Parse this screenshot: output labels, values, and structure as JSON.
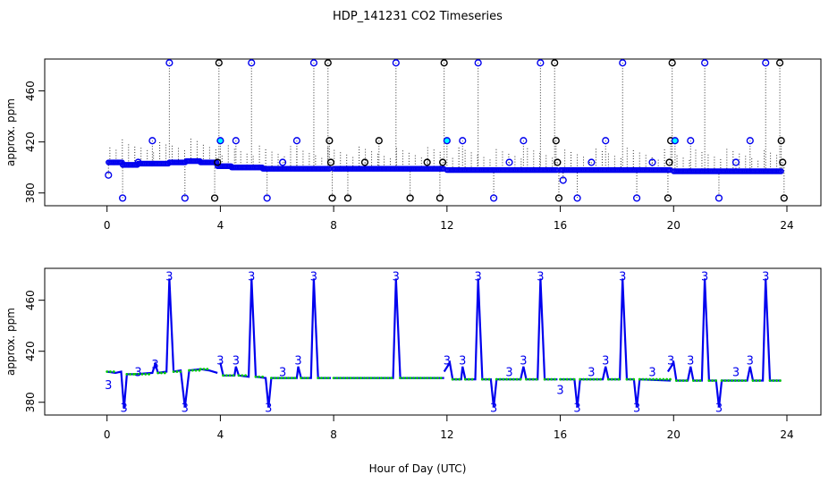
{
  "chart_data": [
    {
      "type": "scatter",
      "title": "HDP_141231  CO2 Timeseries",
      "ylabel": "approx. ppm",
      "xlim": [
        -2.2,
        25.2
      ],
      "ylim": [
        370,
        485
      ],
      "xticks": [
        0,
        4,
        8,
        12,
        16,
        20,
        24
      ],
      "yticks": [
        380,
        420,
        460
      ],
      "colors": {
        "main": "#0000ee",
        "fill": "#00ffff",
        "outlier_black": "#000000",
        "dots": "#333333"
      },
      "main_series": [
        {
          "start": 0.05,
          "end": 0.55,
          "value": 404
        },
        {
          "start": 0.55,
          "end": 1.1,
          "value": 402
        },
        {
          "start": 1.1,
          "end": 1.6,
          "value": 403
        },
        {
          "start": 1.6,
          "end": 2.2,
          "value": 403
        },
        {
          "start": 2.2,
          "end": 2.8,
          "value": 404
        },
        {
          "start": 2.8,
          "end": 3.3,
          "value": 405
        },
        {
          "start": 3.3,
          "end": 3.9,
          "value": 404
        },
        {
          "start": 3.9,
          "end": 4.4,
          "value": 401
        },
        {
          "start": 4.4,
          "end": 5.5,
          "value": 400
        },
        {
          "start": 5.5,
          "end": 7.9,
          "value": 399
        },
        {
          "start": 8.0,
          "end": 11.9,
          "value": 399
        },
        {
          "start": 12.0,
          "end": 15.9,
          "value": 398
        },
        {
          "start": 16.0,
          "end": 19.9,
          "value": 398
        },
        {
          "start": 20.0,
          "end": 23.8,
          "value": 397
        }
      ],
      "outliers": [
        {
          "x": 0.05,
          "y": 394,
          "color": "blue"
        },
        {
          "x": 0.55,
          "y": 376,
          "color": "blue"
        },
        {
          "x": 1.1,
          "y": 404,
          "color": "blue"
        },
        {
          "x": 1.6,
          "y": 421,
          "color": "blue"
        },
        {
          "x": 2.2,
          "y": 482,
          "color": "blue"
        },
        {
          "x": 2.75,
          "y": 376,
          "color": "blue"
        },
        {
          "x": 3.8,
          "y": 376,
          "color": "black"
        },
        {
          "x": 3.9,
          "y": 404,
          "color": "black"
        },
        {
          "x": 3.95,
          "y": 482,
          "color": "black"
        },
        {
          "x": 4.0,
          "y": 421,
          "color": "cyan"
        },
        {
          "x": 4.55,
          "y": 421,
          "color": "blue"
        },
        {
          "x": 5.1,
          "y": 482,
          "color": "blue"
        },
        {
          "x": 5.65,
          "y": 376,
          "color": "blue"
        },
        {
          "x": 6.2,
          "y": 404,
          "color": "blue"
        },
        {
          "x": 6.7,
          "y": 421,
          "color": "blue"
        },
        {
          "x": 7.3,
          "y": 482,
          "color": "blue"
        },
        {
          "x": 7.8,
          "y": 482,
          "color": "black"
        },
        {
          "x": 7.85,
          "y": 421,
          "color": "black"
        },
        {
          "x": 7.9,
          "y": 404,
          "color": "black"
        },
        {
          "x": 7.95,
          "y": 376,
          "color": "black"
        },
        {
          "x": 8.5,
          "y": 376,
          "color": "black"
        },
        {
          "x": 9.1,
          "y": 404,
          "color": "black"
        },
        {
          "x": 9.6,
          "y": 421,
          "color": "black"
        },
        {
          "x": 10.2,
          "y": 482,
          "color": "blue"
        },
        {
          "x": 10.7,
          "y": 376,
          "color": "black"
        },
        {
          "x": 11.3,
          "y": 404,
          "color": "black"
        },
        {
          "x": 11.75,
          "y": 376,
          "color": "black"
        },
        {
          "x": 11.85,
          "y": 404,
          "color": "black"
        },
        {
          "x": 11.9,
          "y": 482,
          "color": "black"
        },
        {
          "x": 12.0,
          "y": 421,
          "color": "cyan"
        },
        {
          "x": 12.55,
          "y": 421,
          "color": "blue"
        },
        {
          "x": 13.1,
          "y": 482,
          "color": "blue"
        },
        {
          "x": 13.65,
          "y": 376,
          "color": "blue"
        },
        {
          "x": 14.2,
          "y": 404,
          "color": "blue"
        },
        {
          "x": 14.7,
          "y": 421,
          "color": "blue"
        },
        {
          "x": 15.3,
          "y": 482,
          "color": "blue"
        },
        {
          "x": 15.8,
          "y": 482,
          "color": "black"
        },
        {
          "x": 15.85,
          "y": 421,
          "color": "black"
        },
        {
          "x": 15.9,
          "y": 404,
          "color": "black"
        },
        {
          "x": 15.95,
          "y": 376,
          "color": "black"
        },
        {
          "x": 16.1,
          "y": 390,
          "color": "blue"
        },
        {
          "x": 16.6,
          "y": 376,
          "color": "blue"
        },
        {
          "x": 17.1,
          "y": 404,
          "color": "blue"
        },
        {
          "x": 17.6,
          "y": 421,
          "color": "blue"
        },
        {
          "x": 18.2,
          "y": 482,
          "color": "blue"
        },
        {
          "x": 18.7,
          "y": 376,
          "color": "blue"
        },
        {
          "x": 19.25,
          "y": 404,
          "color": "blue"
        },
        {
          "x": 19.8,
          "y": 376,
          "color": "black"
        },
        {
          "x": 19.85,
          "y": 404,
          "color": "black"
        },
        {
          "x": 19.9,
          "y": 421,
          "color": "black"
        },
        {
          "x": 19.95,
          "y": 482,
          "color": "black"
        },
        {
          "x": 20.05,
          "y": 421,
          "color": "cyan"
        },
        {
          "x": 20.6,
          "y": 421,
          "color": "blue"
        },
        {
          "x": 21.1,
          "y": 482,
          "color": "blue"
        },
        {
          "x": 21.6,
          "y": 376,
          "color": "blue"
        },
        {
          "x": 22.2,
          "y": 404,
          "color": "blue"
        },
        {
          "x": 22.7,
          "y": 421,
          "color": "blue"
        },
        {
          "x": 23.25,
          "y": 482,
          "color": "blue"
        },
        {
          "x": 23.75,
          "y": 482,
          "color": "black"
        },
        {
          "x": 23.8,
          "y": 421,
          "color": "black"
        },
        {
          "x": 23.85,
          "y": 404,
          "color": "black"
        },
        {
          "x": 23.9,
          "y": 376,
          "color": "black"
        }
      ]
    },
    {
      "type": "line",
      "ylabel": "approx. ppm",
      "xlabel": "Hour of Day (UTC)",
      "xlim": [
        -2.2,
        25.2
      ],
      "ylim": [
        370,
        485
      ],
      "xticks": [
        0,
        4,
        8,
        12,
        16,
        20,
        24
      ],
      "yticks": [
        380,
        420,
        460
      ],
      "marker_label": "3",
      "colors": {
        "line": "#0000ee",
        "points": "#00cc00"
      },
      "segments": [
        {
          "points": [
            [
              0.0,
              404
            ],
            [
              0.3,
              403
            ],
            [
              0.5,
              404
            ],
            [
              0.6,
              375
            ],
            [
              0.7,
              402
            ],
            [
              1.0,
              402
            ],
            [
              1.6,
              403
            ],
            [
              1.7,
              410
            ],
            [
              1.8,
              403
            ],
            [
              2.1,
              404
            ],
            [
              2.2,
              477
            ],
            [
              2.35,
              404
            ],
            [
              2.6,
              405
            ],
            [
              2.75,
              376
            ],
            [
              2.9,
              405
            ],
            [
              3.3,
              406
            ],
            [
              3.6,
              405
            ],
            [
              3.9,
              403
            ]
          ]
        },
        {
          "points": [
            [
              4.0,
              411
            ],
            [
              4.1,
              401
            ],
            [
              4.5,
              401
            ],
            [
              4.55,
              408
            ],
            [
              4.65,
              401
            ],
            [
              5.0,
              400
            ],
            [
              5.1,
              477
            ],
            [
              5.25,
              400
            ],
            [
              5.6,
              399
            ],
            [
              5.7,
              376
            ],
            [
              5.8,
              399
            ],
            [
              6.7,
              399
            ],
            [
              6.75,
              408
            ],
            [
              6.85,
              399
            ],
            [
              7.2,
              399
            ],
            [
              7.3,
              477
            ],
            [
              7.45,
              399
            ],
            [
              7.9,
              399
            ]
          ]
        },
        {
          "points": [
            [
              8.0,
              399
            ],
            [
              10.1,
              399
            ],
            [
              10.2,
              477
            ],
            [
              10.35,
              399
            ],
            [
              11.9,
              399
            ]
          ]
        },
        {
          "points": [
            [
              11.9,
              404
            ],
            [
              12.1,
              411
            ],
            [
              12.2,
              398
            ],
            [
              12.5,
              398
            ],
            [
              12.55,
              408
            ],
            [
              12.65,
              398
            ],
            [
              13.0,
              398
            ],
            [
              13.1,
              477
            ],
            [
              13.25,
              398
            ],
            [
              13.55,
              398
            ],
            [
              13.65,
              376
            ],
            [
              13.75,
              398
            ],
            [
              14.6,
              398
            ],
            [
              14.7,
              408
            ],
            [
              14.8,
              398
            ],
            [
              15.2,
              398
            ],
            [
              15.3,
              477
            ],
            [
              15.45,
              398
            ],
            [
              15.9,
              398
            ]
          ]
        },
        {
          "points": [
            [
              16.0,
              398
            ],
            [
              16.5,
              398
            ],
            [
              16.6,
              376
            ],
            [
              16.7,
              398
            ],
            [
              17.5,
              398
            ],
            [
              17.6,
              408
            ],
            [
              17.7,
              398
            ],
            [
              18.1,
              398
            ],
            [
              18.2,
              477
            ],
            [
              18.35,
              398
            ],
            [
              18.6,
              398
            ],
            [
              18.7,
              376
            ],
            [
              18.8,
              398
            ],
            [
              19.9,
              397
            ]
          ]
        },
        {
          "points": [
            [
              19.8,
              404
            ],
            [
              20.0,
              411
            ],
            [
              20.1,
              397
            ],
            [
              20.5,
              397
            ],
            [
              20.6,
              408
            ],
            [
              20.7,
              397
            ],
            [
              21.0,
              397
            ],
            [
              21.1,
              477
            ],
            [
              21.25,
              397
            ],
            [
              21.5,
              397
            ],
            [
              21.6,
              376
            ],
            [
              21.7,
              397
            ],
            [
              22.6,
              397
            ],
            [
              22.7,
              408
            ],
            [
              22.8,
              397
            ],
            [
              23.15,
              397
            ],
            [
              23.25,
              477
            ],
            [
              23.4,
              397
            ],
            [
              23.8,
              397
            ]
          ]
        }
      ],
      "labels": [
        {
          "x": 0.05,
          "y": 394
        },
        {
          "x": 0.6,
          "y": 376
        },
        {
          "x": 1.1,
          "y": 404
        },
        {
          "x": 1.7,
          "y": 410
        },
        {
          "x": 2.2,
          "y": 479
        },
        {
          "x": 2.75,
          "y": 376
        },
        {
          "x": 4.0,
          "y": 413
        },
        {
          "x": 4.55,
          "y": 413
        },
        {
          "x": 5.1,
          "y": 479
        },
        {
          "x": 5.7,
          "y": 376
        },
        {
          "x": 6.2,
          "y": 404
        },
        {
          "x": 6.75,
          "y": 413
        },
        {
          "x": 7.3,
          "y": 479
        },
        {
          "x": 10.2,
          "y": 479
        },
        {
          "x": 12.0,
          "y": 413
        },
        {
          "x": 12.55,
          "y": 413
        },
        {
          "x": 13.1,
          "y": 479
        },
        {
          "x": 13.65,
          "y": 376
        },
        {
          "x": 14.2,
          "y": 404
        },
        {
          "x": 14.7,
          "y": 413
        },
        {
          "x": 15.3,
          "y": 479
        },
        {
          "x": 16.0,
          "y": 390
        },
        {
          "x": 16.6,
          "y": 376
        },
        {
          "x": 17.1,
          "y": 404
        },
        {
          "x": 17.6,
          "y": 413
        },
        {
          "x": 18.2,
          "y": 479
        },
        {
          "x": 18.7,
          "y": 376
        },
        {
          "x": 19.25,
          "y": 404
        },
        {
          "x": 19.9,
          "y": 413
        },
        {
          "x": 20.6,
          "y": 413
        },
        {
          "x": 21.1,
          "y": 479
        },
        {
          "x": 21.6,
          "y": 376
        },
        {
          "x": 22.2,
          "y": 404
        },
        {
          "x": 22.7,
          "y": 413
        },
        {
          "x": 23.25,
          "y": 479
        }
      ]
    }
  ]
}
